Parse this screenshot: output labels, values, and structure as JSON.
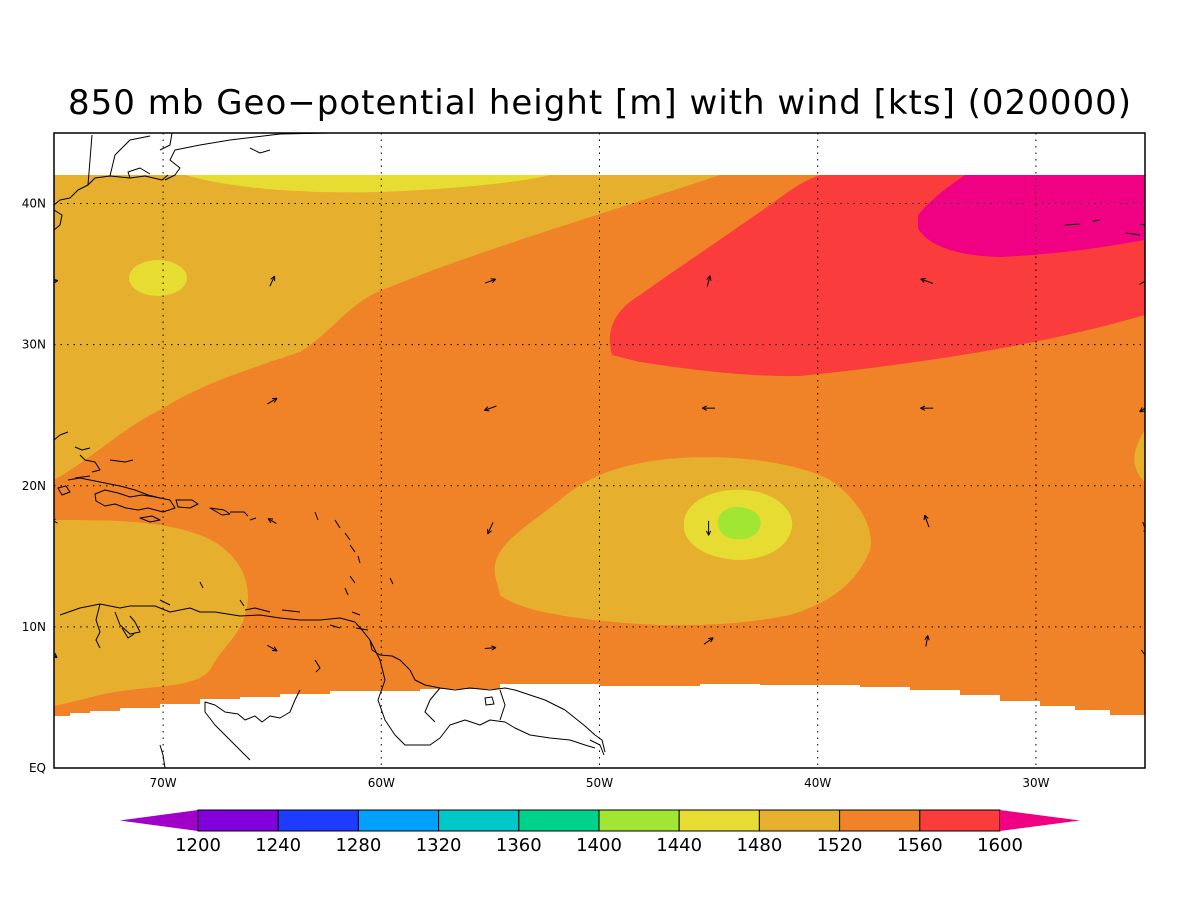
{
  "title": "850 mb Geo−potential height [m] with wind [kts] (020000)",
  "colors": {
    "c1440": "#a0e632",
    "c1480": "#e6dc32",
    "c1520": "#e6af2d",
    "c1560": "#f08228",
    "c1600": "#fa3c3c",
    "c1600plus": "#f00082",
    "below1200": "#a000c8"
  },
  "map": {
    "lon_range": [
      -75,
      -25
    ],
    "lat_range": [
      0,
      45
    ],
    "data_lat_range": [
      4,
      42
    ],
    "x_ticks": [
      {
        "lon": -70,
        "label": "70W"
      },
      {
        "lon": -60,
        "label": "60W"
      },
      {
        "lon": -50,
        "label": "50W"
      },
      {
        "lon": -40,
        "label": "40W"
      },
      {
        "lon": -30,
        "label": "30W"
      }
    ],
    "y_ticks": [
      {
        "lat": 0,
        "label": "EQ"
      },
      {
        "lat": 10,
        "label": "10N"
      },
      {
        "lat": 20,
        "label": "20N"
      },
      {
        "lat": 30,
        "label": "30N"
      },
      {
        "lat": 40,
        "label": "40N"
      }
    ],
    "wind_vectors": [
      {
        "lon": -75,
        "lat": 34.5,
        "dir": 80,
        "mag": 0.5
      },
      {
        "lon": -65,
        "lat": 34.5,
        "dir": 25,
        "mag": 0.7
      },
      {
        "lon": -55,
        "lat": 34.5,
        "dir": 70,
        "mag": 0.7
      },
      {
        "lon": -45,
        "lat": 34.5,
        "dir": 15,
        "mag": 0.7
      },
      {
        "lon": -35,
        "lat": 34.5,
        "dir": 290,
        "mag": 0.8
      },
      {
        "lon": -25,
        "lat": 34.5,
        "dir": 60,
        "mag": 0.8
      },
      {
        "lon": -25,
        "lat": 38.5,
        "dir": 95,
        "mag": 0.6
      },
      {
        "lon": -65,
        "lat": 26,
        "dir": 60,
        "mag": 0.7
      },
      {
        "lon": -55,
        "lat": 25.5,
        "dir": 250,
        "mag": 0.8
      },
      {
        "lon": -45,
        "lat": 25.5,
        "dir": 270,
        "mag": 0.8
      },
      {
        "lon": -35,
        "lat": 25.5,
        "dir": 270,
        "mag": 0.8
      },
      {
        "lon": -25,
        "lat": 25.5,
        "dir": 235,
        "mag": 0.8
      },
      {
        "lon": -75,
        "lat": 17.5,
        "dir": 300,
        "mag": 0.5
      },
      {
        "lon": -65,
        "lat": 17.5,
        "dir": 300,
        "mag": 0.6
      },
      {
        "lon": -55,
        "lat": 17,
        "dir": 205,
        "mag": 0.8
      },
      {
        "lon": -45,
        "lat": 17,
        "dir": 180,
        "mag": 0.9
      },
      {
        "lon": -35,
        "lat": 17.5,
        "dir": 340,
        "mag": 0.8
      },
      {
        "lon": -25,
        "lat": 17,
        "dir": 160,
        "mag": 0.8
      },
      {
        "lon": -75,
        "lat": 8,
        "dir": 130,
        "mag": 0.5
      },
      {
        "lon": -65,
        "lat": 8.5,
        "dir": 120,
        "mag": 0.7
      },
      {
        "lon": -55,
        "lat": 8.5,
        "dir": 85,
        "mag": 0.7
      },
      {
        "lon": -45,
        "lat": 9,
        "dir": 55,
        "mag": 0.7
      },
      {
        "lon": -35,
        "lat": 9,
        "dir": 10,
        "mag": 0.7
      },
      {
        "lon": -25,
        "lat": 8,
        "dir": 145,
        "mag": 0.8
      }
    ]
  },
  "colorbar": {
    "labels": [
      "1200",
      "1240",
      "1280",
      "1320",
      "1360",
      "1400",
      "1440",
      "1480",
      "1520",
      "1560",
      "1600"
    ],
    "colors": [
      "#a000c8",
      "#8200dc",
      "#1e3cff",
      "#00a0ff",
      "#00c8c8",
      "#00d28c",
      "#a0e632",
      "#e6dc32",
      "#e6af2d",
      "#f08228",
      "#fa3c3c",
      "#f00082"
    ]
  }
}
